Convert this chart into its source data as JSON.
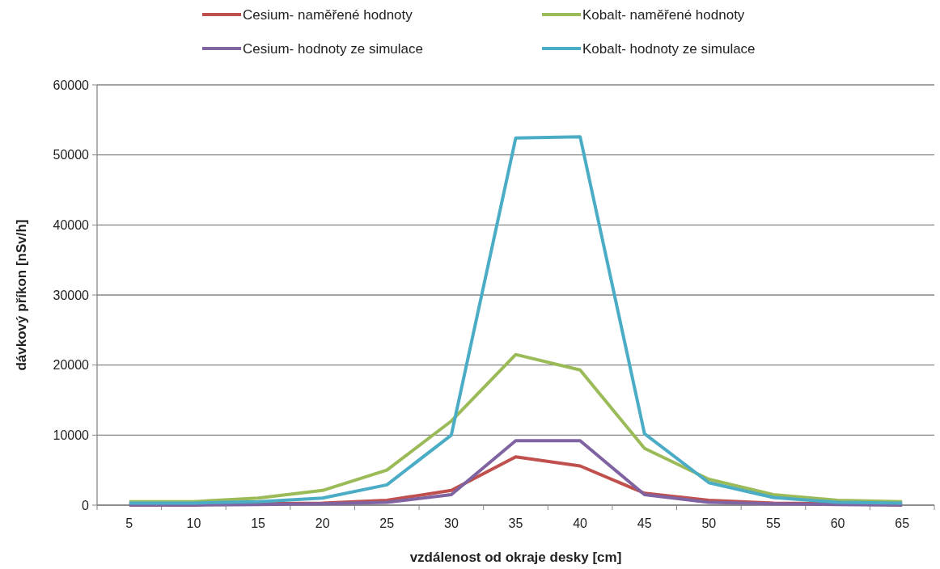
{
  "chart_data": {
    "type": "line",
    "xlabel": "vzdálenost  od okraje desky [cm]",
    "ylabel": "dávkový příkon [nSv/h]",
    "categories": [
      "5",
      "10",
      "15",
      "20",
      "25",
      "30",
      "35",
      "40",
      "45",
      "50",
      "55",
      "60",
      "65"
    ],
    "ylim": [
      0,
      60000
    ],
    "yticks": [
      0,
      10000,
      20000,
      30000,
      40000,
      50000,
      60000
    ],
    "grid": "y",
    "legend": "top",
    "line_style": "solid",
    "marker": "none",
    "series": [
      {
        "name": "Cesium- naměřené hodnoty",
        "color": "#c0504d",
        "values": [
          100,
          100,
          200,
          300,
          700,
          2100,
          6900,
          5600,
          1700,
          700,
          300,
          200,
          100
        ]
      },
      {
        "name": "Kobalt- naměřené hodnoty",
        "color": "#9bbb59",
        "values": [
          500,
          500,
          1000,
          2100,
          5000,
          12000,
          21500,
          19300,
          8100,
          3700,
          1500,
          700,
          500
        ]
      },
      {
        "name": "Cesium- hodnoty ze simulace",
        "color": "#8064a2",
        "values": [
          0,
          0,
          100,
          200,
          400,
          1500,
          9200,
          9200,
          1500,
          400,
          200,
          100,
          0
        ]
      },
      {
        "name": "Kobalt- hodnoty ze simulace",
        "color": "#4bacc6",
        "values": [
          300,
          300,
          500,
          1000,
          2900,
          10000,
          52400,
          52600,
          10200,
          3200,
          1100,
          400,
          300
        ]
      }
    ]
  }
}
